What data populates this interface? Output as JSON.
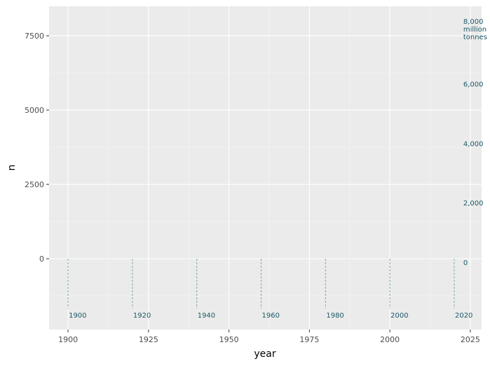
{
  "chart_data": {
    "type": "annotation",
    "x_label": "year",
    "y_label": "n",
    "xlim": [
      1894.1,
      2028.5
    ],
    "xticks": [
      1900,
      1925,
      1950,
      1975,
      2000,
      2025
    ],
    "xminor": [
      1912.5,
      1937.5,
      1962.5,
      1987.5,
      2012.5
    ],
    "ylim": [
      -2382,
      8490
    ],
    "yticks": [
      0,
      2500,
      5000,
      7500
    ],
    "yminor": [
      -1250,
      1250,
      3750,
      6250
    ],
    "grid": true,
    "annotation_color": "#1b5a66",
    "marker_color": "#7fa9a9",
    "year_markers": [
      {
        "value": 1900,
        "label": "1900"
      },
      {
        "value": 1920,
        "label": "1920"
      },
      {
        "value": 1940,
        "label": "1940"
      },
      {
        "value": 1960,
        "label": "1960"
      },
      {
        "value": 1980,
        "label": "1980"
      },
      {
        "value": 2000,
        "label": "2000"
      },
      {
        "value": 2020,
        "label": "2020"
      }
    ],
    "scale_labels_x": 2022.8,
    "scale_labels": [
      {
        "value": 0,
        "label": "0"
      },
      {
        "value": 2000,
        "label": "2,000"
      },
      {
        "value": 4000,
        "label": "4,000"
      },
      {
        "value": 6000,
        "label": "6,000"
      },
      {
        "value": 8000,
        "label": "8,000\nmillion\ntonnes"
      }
    ]
  }
}
